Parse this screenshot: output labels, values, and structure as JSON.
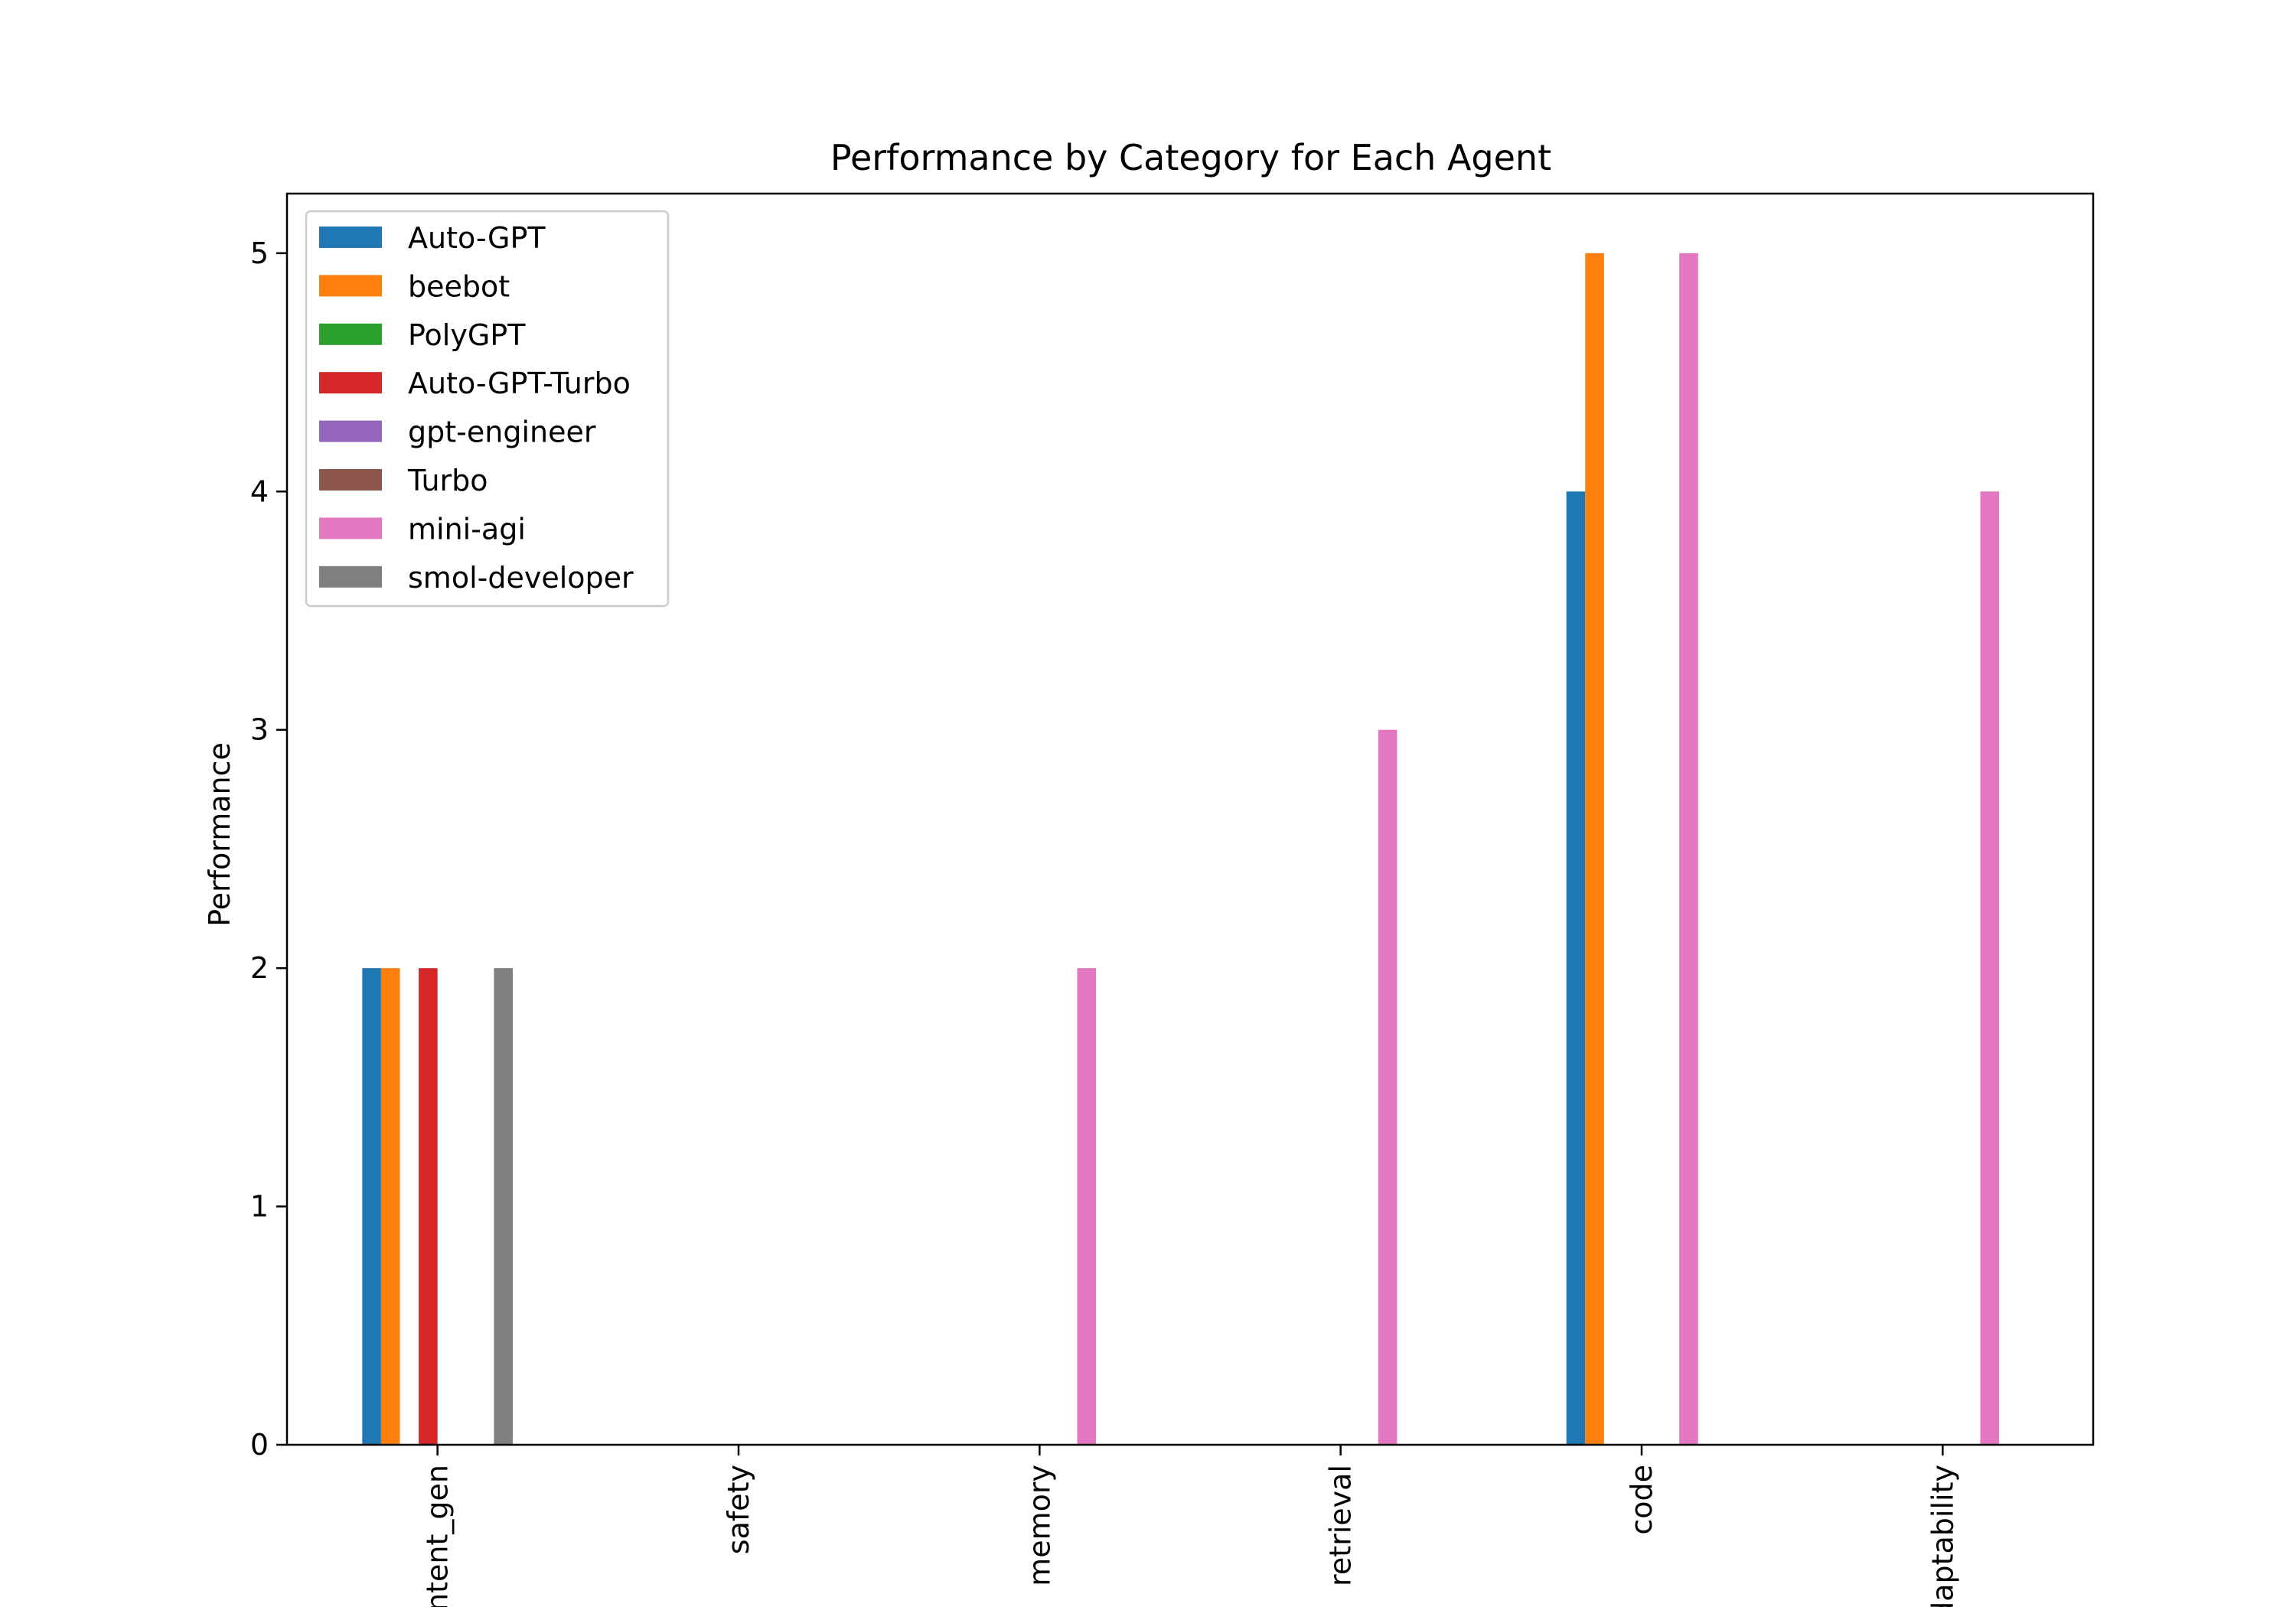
{
  "chart_data": {
    "type": "bar",
    "title": "Performance by Category for Each Agent",
    "xlabel": "",
    "ylabel": "Performance",
    "categories": [
      "content_gen",
      "safety",
      "memory",
      "retrieval",
      "code",
      "adaptability"
    ],
    "ylim": [
      0,
      5.25
    ],
    "yticks": [
      0,
      1,
      2,
      3,
      4,
      5
    ],
    "grid": false,
    "legend_position": "top-left",
    "series": [
      {
        "name": "Auto-GPT",
        "color": "#1f77b4",
        "values": [
          2,
          0,
          0,
          0,
          4,
          0
        ]
      },
      {
        "name": "beebot",
        "color": "#ff7f0e",
        "values": [
          2,
          0,
          0,
          0,
          5,
          0
        ]
      },
      {
        "name": "PolyGPT",
        "color": "#2ca02c",
        "values": [
          0,
          0,
          0,
          0,
          0,
          0
        ]
      },
      {
        "name": "Auto-GPT-Turbo",
        "color": "#d62728",
        "values": [
          2,
          0,
          0,
          0,
          0,
          0
        ]
      },
      {
        "name": "gpt-engineer",
        "color": "#9467bd",
        "values": [
          0,
          0,
          0,
          0,
          0,
          0
        ]
      },
      {
        "name": "Turbo",
        "color": "#8c564b",
        "values": [
          0,
          0,
          0,
          0,
          0,
          0
        ]
      },
      {
        "name": "mini-agi",
        "color": "#e377c2",
        "values": [
          0,
          0,
          2,
          3,
          5,
          4
        ]
      },
      {
        "name": "smol-developer",
        "color": "#7f7f7f",
        "values": [
          2,
          0,
          0,
          0,
          0,
          0
        ]
      }
    ]
  }
}
